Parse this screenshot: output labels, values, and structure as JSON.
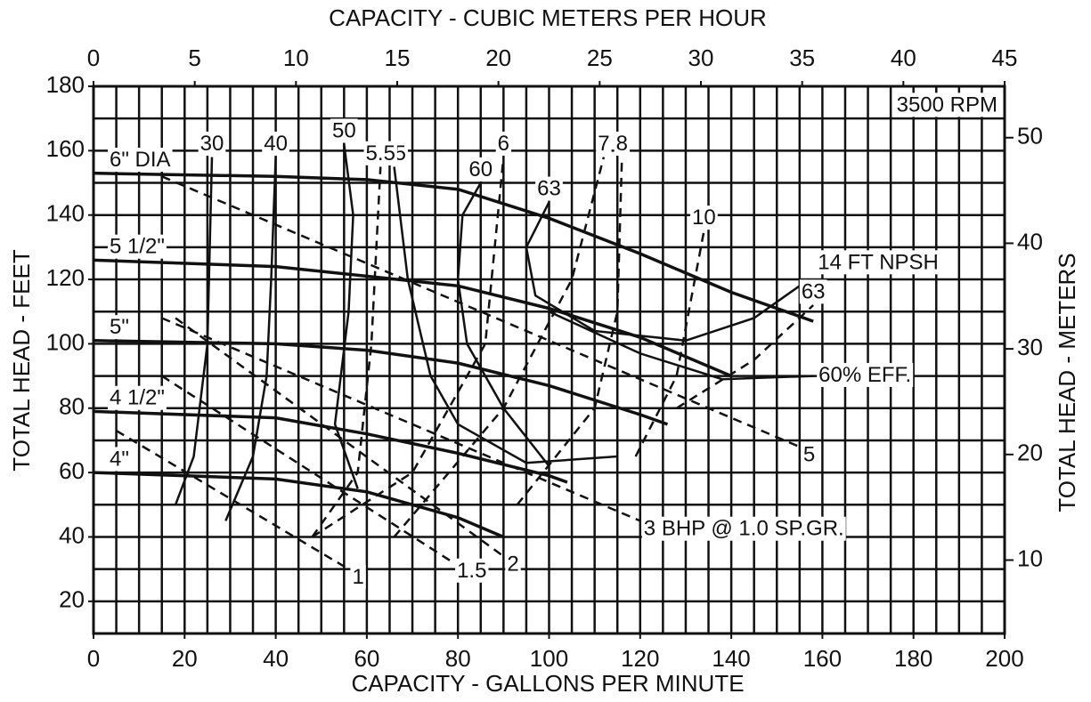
{
  "chart_data": {
    "type": "line",
    "xlabel": "CAPACITY - GALLONS PER MINUTE",
    "x2label": "CAPACITY - CUBIC METERS PER HOUR",
    "ylabel": "TOTAL HEAD - FEET",
    "y2label": "TOTAL HEAD - METERS",
    "xlim": [
      0,
      200
    ],
    "xticks": [
      0,
      20,
      40,
      60,
      80,
      100,
      120,
      140,
      160,
      180,
      200
    ],
    "x2lim": [
      0,
      45
    ],
    "x2ticks": [
      0,
      5,
      10,
      15,
      20,
      25,
      30,
      35,
      40,
      45
    ],
    "ylim": [
      10,
      180
    ],
    "yticks": [
      20,
      40,
      60,
      80,
      100,
      120,
      140,
      160,
      180
    ],
    "y2lim": [
      3.048,
      54.864
    ],
    "y2ticks": [
      10,
      20,
      30,
      40,
      50
    ],
    "grid": true,
    "xgrid_step": 5,
    "ygrid_step": 10,
    "color": "#111111",
    "annotations": [
      "3500 RPM",
      "14 FT NPSH"
    ],
    "series": [
      {
        "name": "6\" DIA",
        "x": [
          0,
          40,
          60,
          80,
          100,
          120,
          140,
          158
        ],
        "values": [
          153,
          152,
          151,
          148,
          139,
          128,
          116,
          107
        ]
      },
      {
        "name": "5 1/2\"",
        "x": [
          0,
          40,
          80,
          100,
          120,
          140
        ],
        "values": [
          126,
          124,
          118,
          111,
          102,
          90
        ]
      },
      {
        "name": "5\"",
        "x": [
          0,
          40,
          60,
          80,
          100,
          120,
          126
        ],
        "values": [
          101,
          100,
          98,
          94,
          87,
          78,
          75
        ]
      },
      {
        "name": "4 1/2\"",
        "x": [
          0,
          40,
          60,
          80,
          100,
          104
        ],
        "values": [
          79,
          77,
          72,
          66,
          59,
          57
        ]
      },
      {
        "name": "4\"",
        "x": [
          0,
          40,
          60,
          80,
          90
        ],
        "values": [
          60,
          58,
          54,
          46,
          40
        ]
      },
      {
        "name": "30",
        "x": [
          18,
          22,
          25,
          26
        ],
        "values": [
          50,
          65,
          100,
          158
        ]
      },
      {
        "name": "40",
        "x": [
          29,
          35,
          38,
          39,
          40
        ],
        "values": [
          45,
          65,
          90,
          120,
          158
        ]
      },
      {
        "name": "50",
        "x": [
          58,
          53,
          56,
          57,
          55
        ],
        "values": [
          55,
          75,
          110,
          140,
          162
        ]
      },
      {
        "name": "55",
        "x": [
          115,
          95,
          80,
          74,
          69,
          66
        ],
        "values": [
          65,
          63,
          75,
          90,
          120,
          155
        ]
      },
      {
        "name": "60",
        "x": [
          100,
          90,
          82,
          80,
          81,
          85
        ],
        "values": [
          62,
          80,
          100,
          120,
          140,
          150
        ]
      },
      {
        "name": "63",
        "x": [
          157,
          145,
          130,
          110,
          97,
          95,
          100
        ],
        "values": [
          120,
          108,
          101,
          104,
          115,
          130,
          144
        ]
      },
      {
        "name": "60% EFF.",
        "x": [
          100,
          120,
          138,
          158
        ],
        "values": [
          110,
          97,
          89,
          90
        ]
      },
      {
        "name": "1",
        "dashed": true,
        "x": [
          5,
          56
        ],
        "values": [
          73,
          30
        ]
      },
      {
        "name": "1.5",
        "dashed": true,
        "x": [
          15,
          79
        ],
        "values": [
          90,
          32
        ]
      },
      {
        "name": "2",
        "dashed": true,
        "x": [
          18,
          90
        ],
        "values": [
          108,
          34
        ]
      },
      {
        "name": "3 BHP @ 1.0 SP.GR.",
        "dashed": true,
        "x": [
          15,
          120
        ],
        "values": [
          108,
          45
        ]
      },
      {
        "name": "5",
        "dashed": true,
        "x": [
          15,
          155
        ],
        "values": [
          152,
          68
        ]
      },
      {
        "name": "6",
        "dashed": true,
        "x": [
          48,
          70,
          86,
          90
        ],
        "values": [
          40,
          60,
          100,
          158
        ]
      },
      {
        "name": "7",
        "dashed": true,
        "x": [
          66,
          90,
          105,
          112
        ],
        "values": [
          40,
          80,
          120,
          158
        ]
      },
      {
        "name": "8",
        "dashed": true,
        "x": [
          93,
          110,
          115,
          116
        ],
        "values": [
          50,
          80,
          110,
          158
        ]
      },
      {
        "name": "10",
        "dashed": true,
        "x": [
          119,
          128,
          134
        ],
        "values": [
          65,
          90,
          135
        ]
      },
      {
        "name": "5.5",
        "dashed": true,
        "x": [
          48,
          58,
          61,
          63
        ],
        "values": [
          40,
          60,
          100,
          155
        ]
      },
      {
        "name": "63",
        "dashed": true,
        "x": [
          128,
          145,
          158
        ],
        "values": [
          80,
          95,
          112
        ]
      }
    ]
  }
}
